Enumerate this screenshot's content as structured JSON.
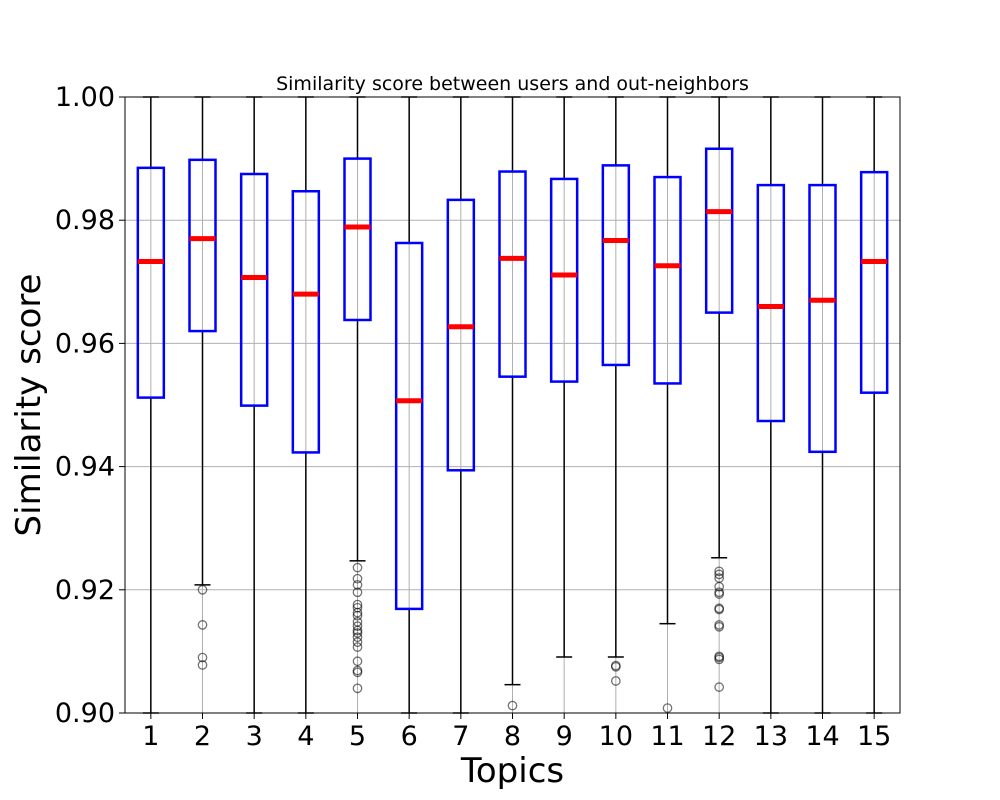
{
  "chart_data": {
    "type": "box",
    "title": "Similarity score between users and out-neighbors",
    "xlabel": "Topics",
    "ylabel": "Similarity score",
    "ylim": [
      0.9,
      1.0
    ],
    "yticks": [
      0.9,
      0.92,
      0.94,
      0.96,
      0.98,
      1.0
    ],
    "ytick_labels": [
      "0.90",
      "0.92",
      "0.94",
      "0.96",
      "0.98",
      "1.00"
    ],
    "grid": true,
    "categories": [
      "1",
      "2",
      "3",
      "4",
      "5",
      "6",
      "7",
      "8",
      "9",
      "10",
      "11",
      "12",
      "13",
      "14",
      "15"
    ],
    "boxes": [
      {
        "q1": 0.9512,
        "median": 0.9733,
        "q3": 0.9885,
        "whisker_low": 0.9,
        "whisker_high": 1.0,
        "outliers": []
      },
      {
        "q1": 0.962,
        "median": 0.977,
        "q3": 0.9898,
        "whisker_low": 0.9208,
        "whisker_high": 1.0,
        "outliers": [
          0.92,
          0.9143,
          0.909,
          0.9078
        ]
      },
      {
        "q1": 0.9499,
        "median": 0.9707,
        "q3": 0.9875,
        "whisker_low": 0.9,
        "whisker_high": 1.0,
        "outliers": []
      },
      {
        "q1": 0.9423,
        "median": 0.968,
        "q3": 0.9847,
        "whisker_low": 0.9,
        "whisker_high": 1.0,
        "outliers": []
      },
      {
        "q1": 0.9638,
        "median": 0.9789,
        "q3": 0.99,
        "whisker_low": 0.9247,
        "whisker_high": 1.0,
        "outliers": [
          0.9236,
          0.9218,
          0.9208,
          0.9196,
          0.9176,
          0.9171,
          0.9163,
          0.9158,
          0.9148,
          0.9141,
          0.9134,
          0.913,
          0.9123,
          0.9115,
          0.9107,
          0.9084,
          0.9069,
          0.9066,
          0.904
        ]
      },
      {
        "q1": 0.9169,
        "median": 0.9507,
        "q3": 0.9763,
        "whisker_low": 0.9,
        "whisker_high": 1.0,
        "outliers": []
      },
      {
        "q1": 0.9394,
        "median": 0.9627,
        "q3": 0.9833,
        "whisker_low": 0.9,
        "whisker_high": 1.0,
        "outliers": []
      },
      {
        "q1": 0.9546,
        "median": 0.9738,
        "q3": 0.9879,
        "whisker_low": 0.9046,
        "whisker_high": 1.0,
        "outliers": [
          0.9012
        ]
      },
      {
        "q1": 0.9538,
        "median": 0.9711,
        "q3": 0.9867,
        "whisker_low": 0.9091,
        "whisker_high": 1.0,
        "outliers": []
      },
      {
        "q1": 0.9565,
        "median": 0.9767,
        "q3": 0.9889,
        "whisker_low": 0.9091,
        "whisker_high": 1.0,
        "outliers": [
          0.9077,
          0.9075,
          0.9052
        ]
      },
      {
        "q1": 0.9535,
        "median": 0.9726,
        "q3": 0.987,
        "whisker_low": 0.9145,
        "whisker_high": 1.0,
        "outliers": [
          0.9008
        ]
      },
      {
        "q1": 0.965,
        "median": 0.9814,
        "q3": 0.9916,
        "whisker_low": 0.9252,
        "whisker_high": 1.0,
        "outliers": [
          0.923,
          0.9225,
          0.9219,
          0.9205,
          0.9196,
          0.9193,
          0.917,
          0.9168,
          0.9143,
          0.914,
          0.9092,
          0.909,
          0.9087,
          0.9042
        ]
      },
      {
        "q1": 0.9474,
        "median": 0.966,
        "q3": 0.9857,
        "whisker_low": 0.9,
        "whisker_high": 1.0,
        "outliers": []
      },
      {
        "q1": 0.9424,
        "median": 0.967,
        "q3": 0.9857,
        "whisker_low": 0.9,
        "whisker_high": 1.0,
        "outliers": []
      },
      {
        "q1": 0.952,
        "median": 0.9733,
        "q3": 0.9878,
        "whisker_low": 0.9,
        "whisker_high": 1.0,
        "outliers": []
      }
    ],
    "colors": {
      "box": "#0000ff",
      "median": "#ff0000",
      "whisker": "#000000",
      "outlier": "#000000",
      "grid": "#b0b0b0",
      "frame": "#000000"
    }
  }
}
